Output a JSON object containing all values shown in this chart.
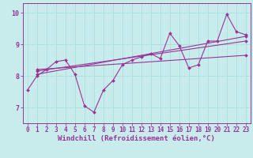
{
  "xlabel": "Windchill (Refroidissement éolien,°C)",
  "background_color": "#c8ecec",
  "grid_color": "#b0dede",
  "line_color": "#993399",
  "x_ticks": [
    0,
    1,
    2,
    3,
    4,
    5,
    6,
    7,
    8,
    9,
    10,
    11,
    12,
    13,
    14,
    15,
    16,
    17,
    18,
    19,
    20,
    21,
    22,
    23
  ],
  "y_ticks": [
    7,
    8,
    9,
    10
  ],
  "ylim": [
    6.5,
    10.3
  ],
  "xlim": [
    -0.5,
    23.5
  ],
  "series1": [
    7.55,
    8.0,
    8.2,
    8.45,
    8.5,
    8.05,
    7.05,
    6.85,
    7.55,
    7.85,
    8.35,
    8.5,
    8.6,
    8.7,
    8.55,
    9.35,
    8.95,
    8.25,
    8.35,
    9.1,
    9.1,
    9.95,
    9.4,
    9.3
  ],
  "trend1_x": [
    1,
    23
  ],
  "trend1_y": [
    8.05,
    9.25
  ],
  "trend2_x": [
    1,
    23
  ],
  "trend2_y": [
    8.15,
    9.1
  ],
  "trend3_x": [
    1,
    23
  ],
  "trend3_y": [
    8.2,
    8.65
  ],
  "tick_fontsize": 5.5,
  "xlabel_fontsize": 6.5
}
